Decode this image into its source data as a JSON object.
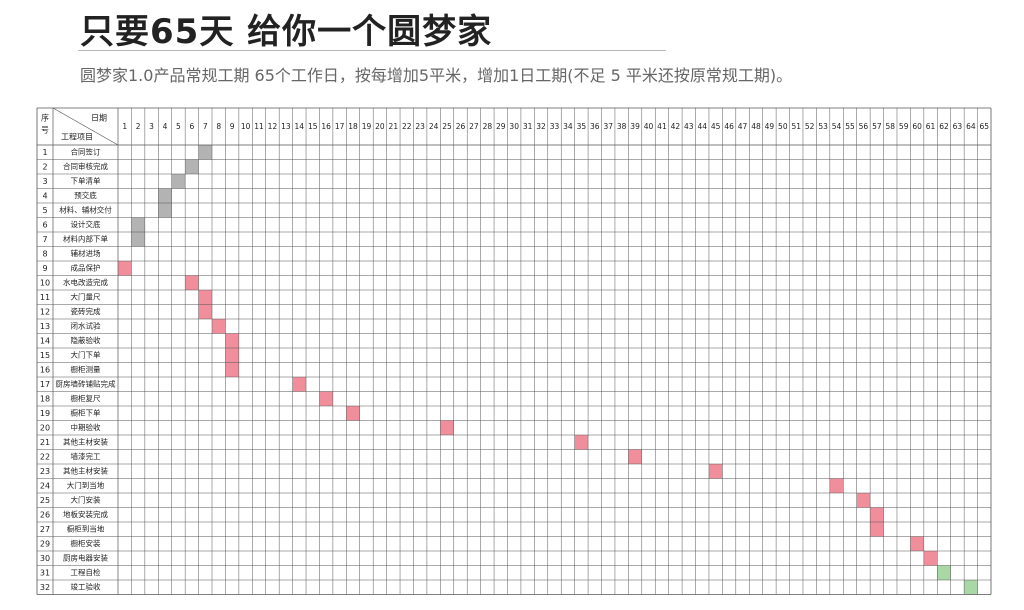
{
  "header": {
    "title": "只要65天 给你一个圆梦家",
    "subtitle": "圆梦家1.0产品常规工期 65个工作日，按每增加5平米，增加1日工期(不足 5 平米还按原常规工期)。"
  },
  "chart_data": {
    "type": "gantt",
    "corner_header": {
      "col_seq": "序号",
      "col_day": "日期",
      "col_item": "工程项目"
    },
    "days": 65,
    "colors": {
      "gray": "#b3b3b3",
      "pink": "#f08e9b",
      "green": "#a9d7a5",
      "grid": "#555555"
    },
    "tasks": [
      {
        "seq": "1",
        "name": "合同签订",
        "days": [
          7
        ],
        "color": "gray"
      },
      {
        "seq": "2",
        "name": "合同审核完成",
        "days": [
          6
        ],
        "color": "gray"
      },
      {
        "seq": "3",
        "name": "下单清单",
        "days": [
          5
        ],
        "color": "gray"
      },
      {
        "seq": "4",
        "name": "预交底",
        "days": [
          4
        ],
        "color": "gray"
      },
      {
        "seq": "5",
        "name": "材料、辅材交付",
        "days": [
          4
        ],
        "color": "gray"
      },
      {
        "seq": "6",
        "name": "设计交底",
        "days": [
          2
        ],
        "color": "gray"
      },
      {
        "seq": "7",
        "name": "材料内部下单",
        "days": [
          2
        ],
        "color": "gray"
      },
      {
        "seq": "8",
        "name": "辅材进场",
        "days": [],
        "color": "gray"
      },
      {
        "seq": "9",
        "name": "成品保护",
        "days": [
          1
        ],
        "color": "pink"
      },
      {
        "seq": "10",
        "name": "水电改造完成",
        "days": [
          6
        ],
        "color": "pink"
      },
      {
        "seq": "11",
        "name": "大门量尺",
        "days": [
          7
        ],
        "color": "pink"
      },
      {
        "seq": "12",
        "name": "瓷砖完成",
        "days": [
          7
        ],
        "color": "pink"
      },
      {
        "seq": "13",
        "name": "闭水试验",
        "days": [
          8
        ],
        "color": "pink"
      },
      {
        "seq": "14",
        "name": "隐蔽验收",
        "days": [
          9
        ],
        "color": "pink"
      },
      {
        "seq": "15",
        "name": "大门下单",
        "days": [
          9
        ],
        "color": "pink"
      },
      {
        "seq": "16",
        "name": "橱柜测量",
        "days": [
          9
        ],
        "color": "pink"
      },
      {
        "seq": "17",
        "name": "厨房墙砖铺贴完成",
        "days": [
          14
        ],
        "color": "pink"
      },
      {
        "seq": "18",
        "name": "橱柜复尺",
        "days": [
          16
        ],
        "color": "pink"
      },
      {
        "seq": "19",
        "name": "橱柜下单",
        "days": [
          18
        ],
        "color": "pink"
      },
      {
        "seq": "20",
        "name": "中期验收",
        "days": [
          25
        ],
        "color": "pink"
      },
      {
        "seq": "21",
        "name": "其他主材安装",
        "days": [
          35
        ],
        "color": "pink"
      },
      {
        "seq": "22",
        "name": "墙漆完工",
        "days": [
          39
        ],
        "color": "pink"
      },
      {
        "seq": "23",
        "name": "其他主材安装",
        "days": [
          45
        ],
        "color": "pink"
      },
      {
        "seq": "24",
        "name": "大门到当地",
        "days": [
          54
        ],
        "color": "pink"
      },
      {
        "seq": "25",
        "name": "大门安装",
        "days": [
          56
        ],
        "color": "pink"
      },
      {
        "seq": "26",
        "name": "地板安装完成",
        "days": [
          57
        ],
        "color": "pink"
      },
      {
        "seq": "27",
        "name": "橱柜到当地",
        "days": [
          57
        ],
        "color": "pink"
      },
      {
        "seq": "29",
        "name": "橱柜安装",
        "days": [
          60
        ],
        "color": "pink"
      },
      {
        "seq": "30",
        "name": "厨房电器安装",
        "days": [
          61
        ],
        "color": "pink"
      },
      {
        "seq": "31",
        "name": "工程自检",
        "days": [
          62
        ],
        "color": "green"
      },
      {
        "seq": "32",
        "name": "竣工验收",
        "days": [
          64
        ],
        "color": "green"
      }
    ]
  }
}
